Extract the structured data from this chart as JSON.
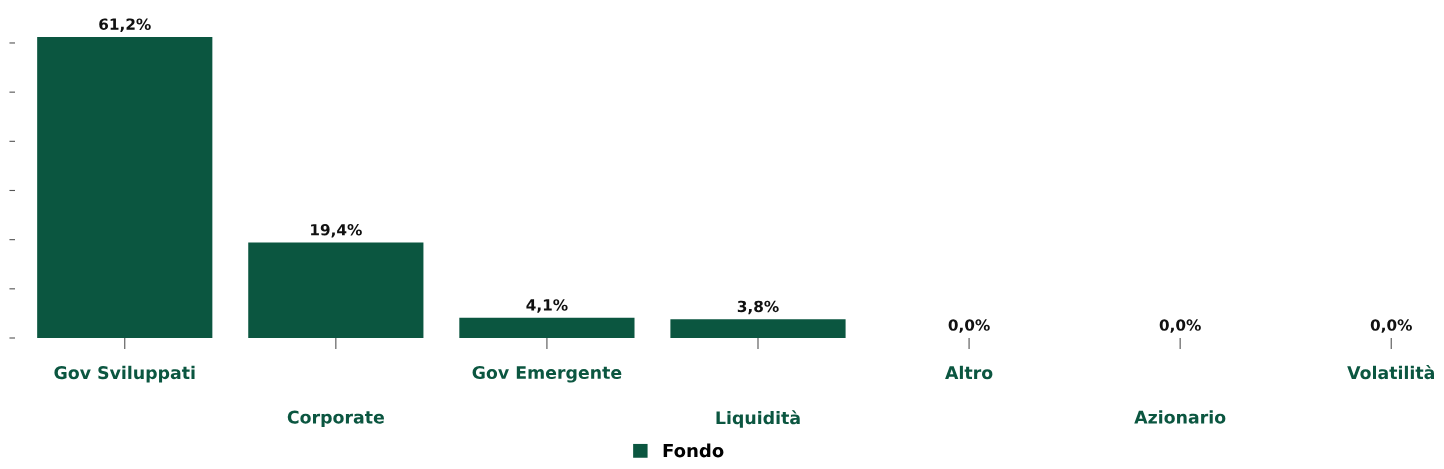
{
  "chart_data": {
    "type": "bar",
    "categories": [
      "Gov Sviluppati",
      "Corporate",
      "Gov Emergente",
      "Liquidità",
      "Altro",
      "Azionario",
      "Volatilità"
    ],
    "series": [
      {
        "name": "Fondo",
        "color": "#0b5640",
        "values": [
          61.2,
          19.4,
          4.1,
          3.8,
          0.0,
          0.0,
          0.0
        ],
        "value_labels": [
          "61,2%",
          "19,4%",
          "4,1%",
          "3,8%",
          "0,0%",
          "0,0%",
          "0,0%"
        ]
      }
    ],
    "tick_labels": "x",
    "grid": false,
    "legend": "bottom"
  }
}
